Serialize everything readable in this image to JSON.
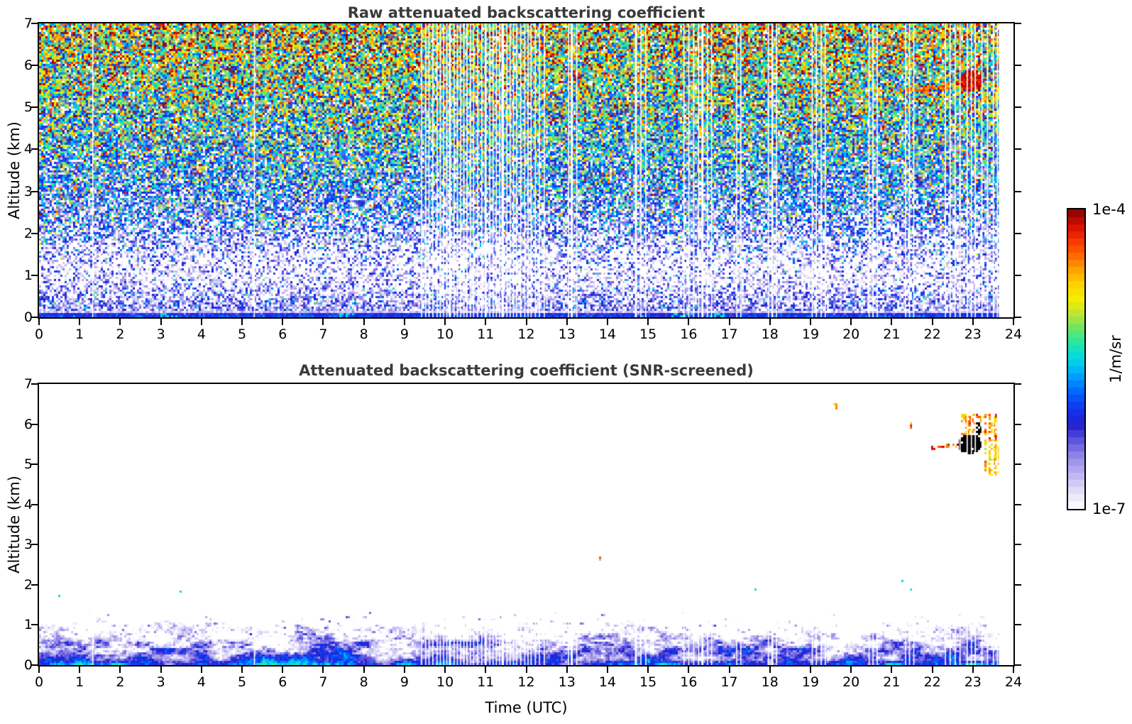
{
  "axes": {
    "x_label": "Time (UTC)",
    "y_label": "Altitude (km)",
    "x_ticks": [
      0,
      1,
      2,
      3,
      4,
      5,
      6,
      7,
      8,
      9,
      10,
      11,
      12,
      13,
      14,
      15,
      16,
      17,
      18,
      19,
      20,
      21,
      22,
      23,
      24
    ],
    "y_ticks": [
      0,
      1,
      2,
      3,
      4,
      5,
      6,
      7
    ],
    "x_range": [
      0,
      24
    ],
    "y_range": [
      0,
      7
    ]
  },
  "colorbar": {
    "label": "1/m/sr",
    "top_label": "1e-4",
    "bottom_label": "1e-7",
    "log_min": -7,
    "log_max": -4,
    "steps": 42,
    "over_max_color": "#000000",
    "stops": [
      [
        0.0,
        "#ffffff"
      ],
      [
        0.05,
        "#e6e2fa"
      ],
      [
        0.11,
        "#bfb6f1"
      ],
      [
        0.17,
        "#948ae8"
      ],
      [
        0.23,
        "#5a50e0"
      ],
      [
        0.28,
        "#2020cc"
      ],
      [
        0.33,
        "#1133ee"
      ],
      [
        0.39,
        "#0066ff"
      ],
      [
        0.45,
        "#00aaff"
      ],
      [
        0.5,
        "#00d9e6"
      ],
      [
        0.55,
        "#22e6aa"
      ],
      [
        0.6,
        "#66e666"
      ],
      [
        0.65,
        "#bbe632"
      ],
      [
        0.7,
        "#f2ee00"
      ],
      [
        0.76,
        "#ffcc00"
      ],
      [
        0.82,
        "#ff8800"
      ],
      [
        0.88,
        "#ff4400"
      ],
      [
        0.94,
        "#dd1100"
      ],
      [
        1.0,
        "#880000"
      ]
    ]
  },
  "gap_stripes": [
    [
      1.32,
      0.02
    ],
    [
      5.3,
      0.02
    ],
    [
      9.42,
      0.02
    ],
    [
      9.52,
      0.02
    ],
    [
      9.6,
      0.02
    ],
    [
      9.7,
      0.03
    ],
    [
      9.8,
      0.02
    ],
    [
      9.88,
      0.02
    ],
    [
      9.96,
      0.02
    ],
    [
      10.04,
      0.02
    ],
    [
      10.12,
      0.05
    ],
    [
      10.22,
      0.02
    ],
    [
      10.3,
      0.02
    ],
    [
      10.38,
      0.02
    ],
    [
      10.46,
      0.02
    ],
    [
      10.54,
      0.03
    ],
    [
      10.62,
      0.02
    ],
    [
      10.7,
      0.02
    ],
    [
      10.8,
      0.02
    ],
    [
      10.9,
      0.02
    ],
    [
      11.0,
      0.05
    ],
    [
      11.1,
      0.02
    ],
    [
      11.18,
      0.02
    ],
    [
      11.26,
      0.02
    ],
    [
      11.34,
      0.02
    ],
    [
      11.42,
      0.06
    ],
    [
      11.52,
      0.02
    ],
    [
      11.6,
      0.02
    ],
    [
      11.68,
      0.02
    ],
    [
      11.76,
      0.02
    ],
    [
      11.86,
      0.02
    ],
    [
      11.96,
      0.02
    ],
    [
      12.04,
      0.02
    ],
    [
      12.12,
      0.03
    ],
    [
      12.22,
      0.02
    ],
    [
      12.32,
      0.02
    ],
    [
      12.44,
      0.02
    ],
    [
      13.04,
      0.02
    ],
    [
      13.12,
      0.05
    ],
    [
      13.24,
      0.02
    ],
    [
      14.7,
      0.05
    ],
    [
      14.82,
      0.02
    ],
    [
      14.94,
      0.02
    ],
    [
      15.88,
      0.02
    ],
    [
      16.0,
      0.02
    ],
    [
      16.12,
      0.02
    ],
    [
      16.24,
      0.02
    ],
    [
      16.34,
      0.05
    ],
    [
      16.46,
      0.02
    ],
    [
      16.56,
      0.02
    ],
    [
      17.18,
      0.02
    ],
    [
      17.28,
      0.02
    ],
    [
      17.96,
      0.02
    ],
    [
      18.06,
      0.04
    ],
    [
      18.16,
      0.02
    ],
    [
      19.04,
      0.02
    ],
    [
      19.14,
      0.02
    ],
    [
      19.26,
      0.02
    ],
    [
      19.36,
      0.02
    ],
    [
      20.44,
      0.02
    ],
    [
      20.54,
      0.03
    ],
    [
      20.64,
      0.02
    ],
    [
      21.34,
      0.02
    ],
    [
      21.44,
      0.03
    ],
    [
      21.54,
      0.02
    ],
    [
      22.32,
      0.02
    ],
    [
      22.44,
      0.03
    ],
    [
      22.56,
      0.02
    ],
    [
      22.68,
      0.02
    ],
    [
      22.86,
      0.03
    ],
    [
      22.96,
      0.02
    ],
    [
      23.06,
      0.03
    ],
    [
      23.22,
      0.02
    ],
    [
      23.36,
      0.03
    ],
    [
      23.5,
      0.02
    ],
    [
      23.6,
      0.02
    ],
    [
      23.83,
      0.38
    ]
  ],
  "chart_data": [
    {
      "type": "heatmap",
      "title": "Raw attenuated backscattering coefficient",
      "xlabel": "",
      "ylabel": "Altitude (km)",
      "x_range_utc_hours": [
        0,
        24
      ],
      "alt_range_km": [
        0,
        7
      ],
      "value_units": "1/m/sr",
      "color_scale": "log10",
      "value_range": [
        1e-07,
        0.0001
      ],
      "mean_log10_profile": [
        [
          0.0,
          -5.95
        ],
        [
          0.07,
          -6.05
        ],
        [
          0.13,
          -6.8
        ],
        [
          0.25,
          -6.55
        ],
        [
          0.5,
          -6.7
        ],
        [
          0.8,
          -6.95
        ],
        [
          1.2,
          -7.05
        ],
        [
          1.7,
          -6.8
        ],
        [
          2.2,
          -6.45
        ],
        [
          3.0,
          -6.08
        ],
        [
          4.0,
          -5.72
        ],
        [
          5.0,
          -5.42
        ],
        [
          6.0,
          -5.15
        ],
        [
          7.0,
          -4.95
        ]
      ],
      "noise_sigma_base": 0.42,
      "noise_sigma_per_km": 0.04,
      "dropout_fraction": 0.055,
      "surface_cyan_streaks": [
        [
          3.0,
          3.4
        ],
        [
          7.3,
          7.8
        ],
        [
          15.6,
          16.1
        ],
        [
          16.5,
          16.9
        ]
      ],
      "features": [
        {
          "kind": "line",
          "t0": 21.35,
          "t1": 22.8,
          "alt0": 5.4,
          "alt1": 5.55,
          "halfwidth": 0.06,
          "log10": -4.5,
          "density": 0.8
        },
        {
          "kind": "blob",
          "tc": 22.95,
          "ac": 5.62,
          "rt": 0.3,
          "ra": 0.25,
          "log10": -4.15,
          "density": 1.0
        },
        {
          "kind": "patch",
          "t0": 23.0,
          "t1": 23.28,
          "alt0": 5.7,
          "alt1": 6.1,
          "log10": -4.5,
          "density": 0.5
        },
        {
          "kind": "patch",
          "t0": 23.15,
          "t1": 23.65,
          "alt0": 4.75,
          "alt1": 5.55,
          "log10": -4.9,
          "density": 0.55
        },
        {
          "kind": "patch",
          "t0": 19.28,
          "t1": 19.4,
          "alt0": 5.9,
          "alt1": 6.55,
          "log10": -4.6,
          "density": 0.45
        },
        {
          "kind": "patch",
          "t0": 21.4,
          "t1": 21.55,
          "alt0": 5.8,
          "alt1": 6.2,
          "log10": -4.7,
          "density": 0.35
        }
      ]
    },
    {
      "type": "heatmap",
      "title": "Attenuated backscattering coefficient (SNR-screened)",
      "xlabel": "Time (UTC)",
      "ylabel": "Altitude (km)",
      "x_range_utc_hours": [
        0,
        24
      ],
      "alt_range_km": [
        0,
        7
      ],
      "value_units": "1/m/sr",
      "color_scale": "log10",
      "value_range": [
        1e-07,
        0.0001
      ],
      "mean_log10_profile": [
        [
          0.0,
          -5.9
        ],
        [
          0.05,
          -6.0
        ],
        [
          0.15,
          -6.35
        ],
        [
          0.35,
          -6.5
        ],
        [
          0.55,
          -6.75
        ],
        [
          0.75,
          -7.0
        ],
        [
          0.95,
          -7.3
        ],
        [
          1.15,
          -7.6
        ],
        [
          1.5,
          -8.2
        ],
        [
          2.2,
          -9.0
        ],
        [
          7.0,
          -9.5
        ]
      ],
      "boundary_layer_top_km": 1.0,
      "sparse_cyan_specks": {
        "alt_min": 1.25,
        "alt_max": 2.15,
        "fraction": 0.0015,
        "log10": -5.5
      },
      "features": [
        {
          "kind": "line",
          "t0": 21.95,
          "t1": 22.65,
          "alt0": 5.42,
          "alt1": 5.46,
          "halfwidth": 0.045,
          "log10": -4.3,
          "density": 0.55
        },
        {
          "kind": "blob",
          "tc": 22.93,
          "ac": 5.5,
          "rt": 0.3,
          "ra": 0.23,
          "over_max": true,
          "density": 0.95
        },
        {
          "kind": "patch",
          "t0": 23.05,
          "t1": 23.22,
          "alt0": 5.6,
          "alt1": 6.05,
          "over_max": true,
          "density": 0.7
        },
        {
          "kind": "patch",
          "t0": 22.7,
          "t1": 23.62,
          "alt0": 5.55,
          "alt1": 6.25,
          "log10": -4.55,
          "density": 0.7
        },
        {
          "kind": "patch",
          "t0": 23.28,
          "t1": 23.66,
          "alt0": 4.7,
          "alt1": 5.6,
          "log10": -4.75,
          "density": 0.75
        },
        {
          "kind": "blob",
          "tc": 19.62,
          "ac": 6.45,
          "rt": 0.05,
          "ra": 0.07,
          "log10": -4.6,
          "density": 0.8
        },
        {
          "kind": "blob",
          "tc": 21.48,
          "ac": 5.98,
          "rt": 0.04,
          "ra": 0.09,
          "log10": -4.4,
          "density": 0.8
        },
        {
          "kind": "blob",
          "tc": 20.55,
          "ac": 6.08,
          "rt": 0.02,
          "ra": 0.04,
          "log10": -4.3,
          "density": 1.0
        },
        {
          "kind": "blob",
          "tc": 13.83,
          "ac": 2.65,
          "rt": 0.03,
          "ra": 0.05,
          "log10": -4.8,
          "density": 1.0
        }
      ]
    }
  ]
}
